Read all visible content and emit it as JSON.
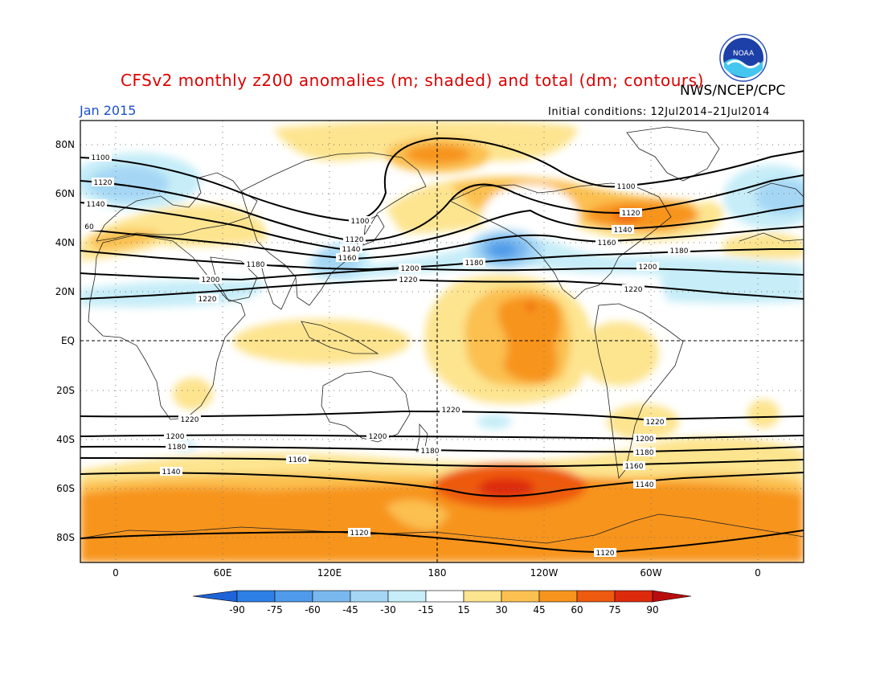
{
  "header": {
    "title": "CFSv2 monthly z200 anomalies (m; shaded) and total (dm; contours)",
    "org": "NWS/NCEP/CPC",
    "period": "Jan 2015",
    "initial_conditions": "Initial conditions: 12Jul2014–21Jul2014",
    "logo_text": "NOAA"
  },
  "axes": {
    "lat_labels": [
      "80N",
      "60N",
      "40N",
      "20N",
      "EQ",
      "20S",
      "40S",
      "60S",
      "80S"
    ],
    "lon_labels": [
      "0",
      "60E",
      "120E",
      "180",
      "120W",
      "60W",
      "0"
    ]
  },
  "colorbar": {
    "labels": [
      "-90",
      "-75",
      "-60",
      "-45",
      "-30",
      "-15",
      "15",
      "30",
      "45",
      "60",
      "75",
      "90"
    ],
    "colors": [
      "#1e63d7",
      "#2d7fe6",
      "#4f9be9",
      "#78b8ef",
      "#a5d7f5",
      "#c6edf8",
      "#ffffff",
      "#fde48f",
      "#fbc050",
      "#f7941e",
      "#ee5a10",
      "#de2a0c",
      "#b80d0d"
    ]
  },
  "contour_labels": {
    "north": [
      "1100",
      "1120",
      "1140",
      "60",
      "1100",
      "1120",
      "1140",
      "1160",
      "1180",
      "1200",
      "1220",
      "1180",
      "1200",
      "1220",
      "1100",
      "1120",
      "1140",
      "1160",
      "1180",
      "1200",
      "1220"
    ],
    "south": [
      "1220",
      "1200",
      "1180",
      "1140",
      "1160",
      "1220",
      "1200",
      "1180",
      "1120",
      "1220",
      "1200",
      "1180",
      "1160",
      "1140",
      "1120"
    ]
  }
}
